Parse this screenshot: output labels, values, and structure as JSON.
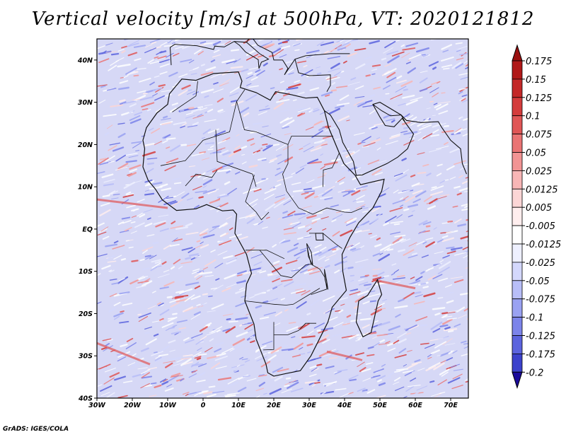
{
  "title": "Vertical velocity [m/s] at 500hPa, VT: 2020121812",
  "credit": "GrADS: IGES/COLA",
  "map": {
    "lon_range": [
      -30,
      75
    ],
    "lat_range": [
      -40,
      45
    ],
    "lon_ticks": [
      {
        "value": -30,
        "label": "30W"
      },
      {
        "value": -20,
        "label": "20W"
      },
      {
        "value": -10,
        "label": "10W"
      },
      {
        "value": 0,
        "label": "0"
      },
      {
        "value": 10,
        "label": "10E"
      },
      {
        "value": 20,
        "label": "20E"
      },
      {
        "value": 30,
        "label": "30E"
      },
      {
        "value": 40,
        "label": "40E"
      },
      {
        "value": 50,
        "label": "50E"
      },
      {
        "value": 60,
        "label": "60E"
      },
      {
        "value": 70,
        "label": "70E"
      }
    ],
    "lat_ticks": [
      {
        "value": 40,
        "label": "40N"
      },
      {
        "value": 30,
        "label": "30N"
      },
      {
        "value": 20,
        "label": "20N"
      },
      {
        "value": 10,
        "label": "10N"
      },
      {
        "value": 0,
        "label": "EQ"
      },
      {
        "value": -10,
        "label": "10S"
      },
      {
        "value": -20,
        "label": "20S"
      },
      {
        "value": -30,
        "label": "30S"
      },
      {
        "value": -40,
        "label": "40S"
      }
    ]
  },
  "colorbar": {
    "levels": [
      {
        "label": "0.175",
        "color": "#b01818"
      },
      {
        "label": "0.15",
        "color": "#c42828"
      },
      {
        "label": "0.125",
        "color": "#d43c3c"
      },
      {
        "label": "0.1",
        "color": "#e05656"
      },
      {
        "label": "0.075",
        "color": "#ea7474"
      },
      {
        "label": "0.05",
        "color": "#f29494"
      },
      {
        "label": "0.025",
        "color": "#f8b6b6"
      },
      {
        "label": "0.0125",
        "color": "#fcd6d6"
      },
      {
        "label": "0.005",
        "color": "#ffeeee"
      },
      {
        "label": "-0.005",
        "color": "#ffffff"
      },
      {
        "label": "-0.0125",
        "color": "#eef0ff"
      },
      {
        "label": "-0.025",
        "color": "#d4d8fc"
      },
      {
        "label": "-0.05",
        "color": "#b8bef8"
      },
      {
        "label": "-0.075",
        "color": "#9aa2f2"
      },
      {
        "label": "-0.1",
        "color": "#7c84ea"
      },
      {
        "label": "-0.125",
        "color": "#5c64de"
      },
      {
        "label": "-0.175",
        "color": "#3c42cc"
      },
      {
        "label": "-0.2",
        "color": "#2424b4"
      }
    ],
    "over_color": "#9a1010",
    "under_color": "#1a0a9a"
  },
  "colors": {
    "field_base": "#d6d8f6",
    "land_outline": "#111111"
  }
}
